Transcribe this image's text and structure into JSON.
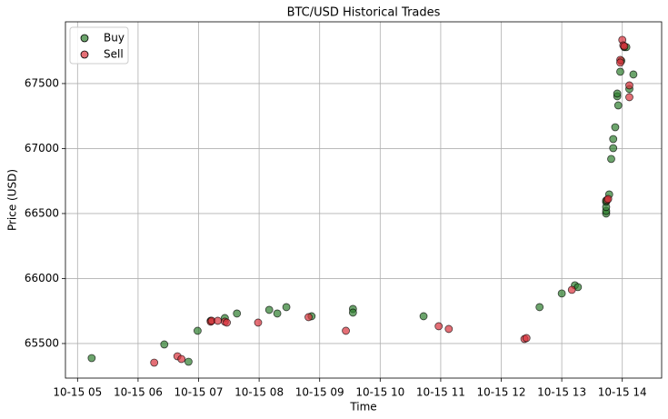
{
  "chart_data": {
    "type": "scatter",
    "title": "BTC/USD Historical Trades",
    "x_label": "Time",
    "y_label": "Price (USD)",
    "xlim": [
      "10-15 04:48",
      "10-15 14:39"
    ],
    "ylim": [
      65234,
      67975
    ],
    "xticks": [
      "10-15 05",
      "10-15 06",
      "10-15 07",
      "10-15 08",
      "10-15 09",
      "10-15 10",
      "10-15 11",
      "10-15 12",
      "10-15 13",
      "10-15 14"
    ],
    "yticks": [
      65500,
      66000,
      66500,
      67000,
      67500
    ],
    "grid": true,
    "legend": "upper-left",
    "series": [
      {
        "name": "Buy",
        "color": "#2e7d2e",
        "x": [
          "10-15 05:14",
          "10-15 06:26",
          "10-15 06:50",
          "10-15 06:59",
          "10-15 07:12",
          "10-15 07:26",
          "10-15 07:38",
          "10-15 08:10",
          "10-15 08:18",
          "10-15 08:27",
          "10-15 08:52",
          "10-15 09:33",
          "10-15 09:33",
          "10-15 10:43",
          "10-15 12:38",
          "10-15 13:00",
          "10-15 13:13",
          "10-15 13:16",
          "10-15 13:44",
          "10-15 13:44",
          "10-15 13:44",
          "10-15 13:44",
          "10-15 13:44",
          "10-15 13:47",
          "10-15 13:49",
          "10-15 13:51",
          "10-15 13:51",
          "10-15 13:53",
          "10-15 13:55",
          "10-15 13:55",
          "10-15 13:56",
          "10-15 13:58",
          "10-15 13:59",
          "10-15 14:02",
          "10-15 14:04",
          "10-15 14:07",
          "10-15 14:11"
        ],
        "values": [
          65388,
          65493,
          65360,
          65598,
          65675,
          65696,
          65731,
          65759,
          65731,
          65780,
          65710,
          65766,
          65738,
          65710,
          65780,
          65885,
          65948,
          65934,
          66500,
          66520,
          66550,
          66590,
          66600,
          66647,
          66920,
          67003,
          67073,
          67164,
          67402,
          67423,
          67332,
          67591,
          67675,
          67780,
          67780,
          67458,
          67570
        ]
      },
      {
        "name": "Sell",
        "color": "#d8323c",
        "x": [
          "10-15 06:16",
          "10-15 06:39",
          "10-15 06:43",
          "10-15 07:12",
          "10-15 07:13",
          "10-15 07:19",
          "10-15 07:26",
          "10-15 07:28",
          "10-15 07:59",
          "10-15 08:49",
          "10-15 09:26",
          "10-15 10:58",
          "10-15 11:08",
          "10-15 12:23",
          "10-15 12:25",
          "10-15 13:10",
          "10-15 13:45",
          "10-15 13:46",
          "10-15 13:58",
          "10-15 13:58",
          "10-15 14:00",
          "10-15 14:01",
          "10-15 14:02",
          "10-15 14:07",
          "10-15 14:07"
        ],
        "values": [
          65353,
          65402,
          65381,
          65668,
          65675,
          65675,
          65668,
          65661,
          65661,
          65703,
          65598,
          65633,
          65612,
          65535,
          65542,
          65913,
          66605,
          66612,
          67682,
          67661,
          67836,
          67794,
          67787,
          67486,
          67395
        ]
      }
    ]
  }
}
